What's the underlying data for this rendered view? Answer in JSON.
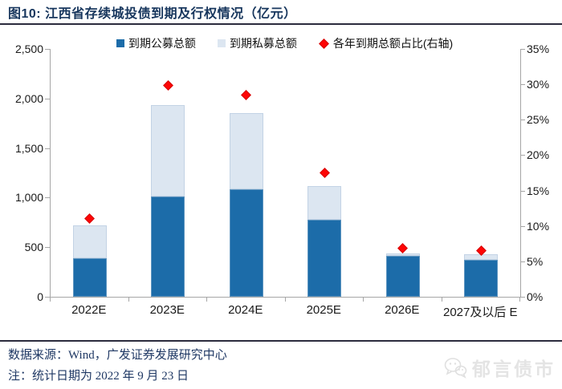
{
  "page": {
    "title": "图10:  江西省存续城投债到期及行权情况（亿元）",
    "source_line": "数据来源：Wind，广发证券发展研究中心",
    "note_line": "注：统计日期为 2022 年 9 月 23 日",
    "watermark_text": "郁言债市"
  },
  "colors": {
    "title_navy": "#17365d",
    "rule_dark": "#2b2b3d",
    "bar_public_fill": "#1c6ca9",
    "bar_public_border": "#5e95c0",
    "bar_private_fill": "#dce6f1",
    "bar_private_border": "#c3d3e5",
    "marker_red_fill": "#fe0505",
    "marker_red_border": "#d40000",
    "axis_line": "#a6a6a6",
    "axis_text": "#1a1a1a",
    "footer_navy": "#1f3864",
    "watermark_gray": "#e4e4e4"
  },
  "chart_data": {
    "type": "bar",
    "stacked": true,
    "grid": false,
    "legend_position": "top",
    "title": "江西省存续城投债到期及行权情况（亿元）",
    "categories": [
      "2022E",
      "2023E",
      "2024E",
      "2025E",
      "2026E",
      "2027及以后 E"
    ],
    "series": [
      {
        "name": "到期公募总额",
        "type": "bar",
        "axis": "left",
        "values": [
          390,
          1015,
          1085,
          775,
          410,
          375
        ]
      },
      {
        "name": "到期私募总额",
        "type": "bar",
        "axis": "left",
        "values": [
          330,
          920,
          765,
          345,
          25,
          50
        ]
      },
      {
        "name": "各年到期总额占比(右轴)",
        "type": "scatter",
        "marker": "diamond",
        "axis": "right",
        "values_pct": [
          11.1,
          29.9,
          28.5,
          17.5,
          6.9,
          6.5
        ]
      }
    ],
    "stack_totals": [
      720,
      1935,
      1850,
      1120,
      435,
      425
    ],
    "left_axis": {
      "min": 0,
      "max": 2500,
      "step": 500,
      "ticks": [
        "0",
        "500",
        "1,000",
        "1,500",
        "2,000",
        "2,500"
      ]
    },
    "right_axis": {
      "min": 0,
      "max": 35,
      "step": 5,
      "ticks": [
        "0%",
        "5%",
        "10%",
        "15%",
        "20%",
        "25%",
        "30%",
        "35%"
      ]
    }
  }
}
